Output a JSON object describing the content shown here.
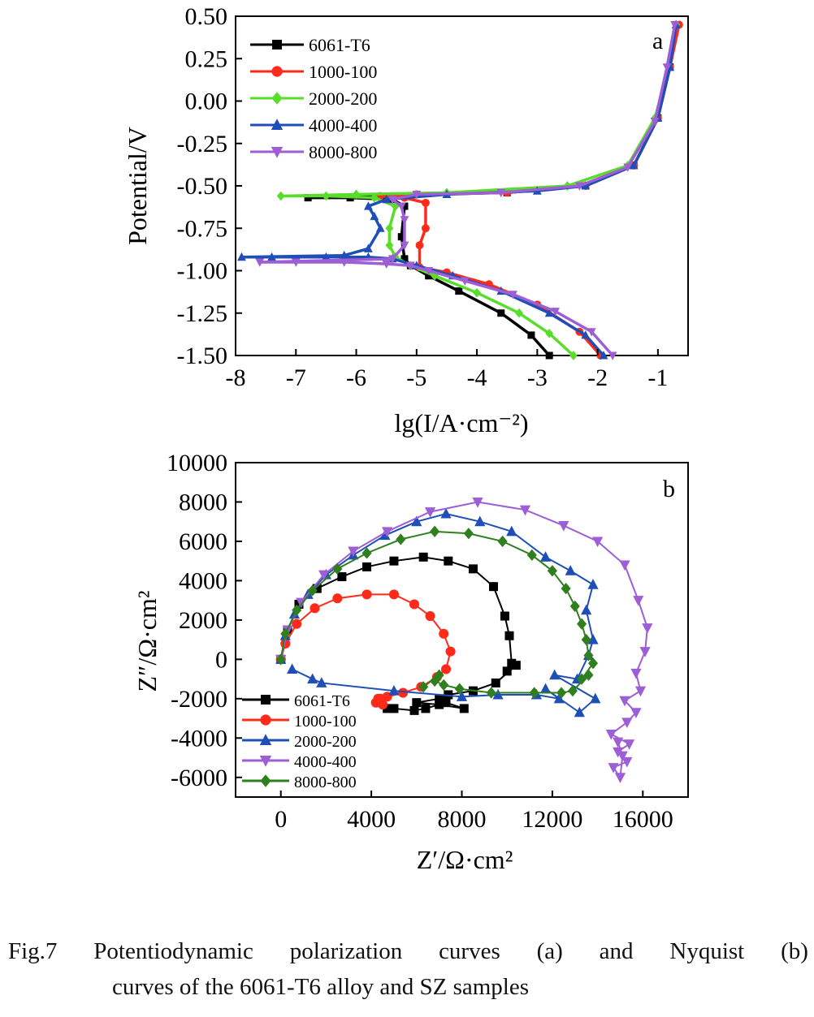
{
  "caption": {
    "label": "Fig.7",
    "line1_words": [
      "Potentiodynamic",
      "polarization",
      "curves",
      "(a)",
      "and",
      "Nyquist",
      "(b)"
    ],
    "line2": "curves of the 6061-T6 alloy and SZ samples"
  },
  "chart_data": [
    {
      "panel": "a",
      "type": "line",
      "xlabel": "lg(I/A·cm⁻²)",
      "ylabel": "Potential/V",
      "xlim": [
        -8,
        -0.5
      ],
      "ylim": [
        -1.5,
        0.5
      ],
      "xticks": [
        "-8",
        "-7",
        "-6",
        "-5",
        "-4",
        "-3",
        "-2",
        "-1"
      ],
      "yticks": [
        "0.50",
        "0.25",
        "0.00",
        "-0.25",
        "-0.50",
        "-0.75",
        "-1.00",
        "-1.25",
        "-1.50"
      ],
      "legend_position": "top-left",
      "series": [
        {
          "name": "6061-T6",
          "color": "#000000",
          "marker": "square",
          "points": [
            [
              -2.8,
              -1.5
            ],
            [
              -3.1,
              -1.38
            ],
            [
              -3.6,
              -1.25
            ],
            [
              -4.3,
              -1.12
            ],
            [
              -4.8,
              -1.03
            ],
            [
              -5.1,
              -0.97
            ],
            [
              -5.2,
              -0.93
            ],
            [
              -5.25,
              -0.8
            ],
            [
              -5.2,
              -0.62
            ],
            [
              -5.4,
              -0.58
            ],
            [
              -6.1,
              -0.57
            ],
            [
              -6.8,
              -0.57
            ],
            [
              -5.0,
              -0.55
            ],
            [
              -3.5,
              -0.54
            ],
            [
              -2.2,
              -0.5
            ],
            [
              -1.4,
              -0.38
            ],
            [
              -1.0,
              -0.1
            ],
            [
              -0.8,
              0.2
            ],
            [
              -0.68,
              0.45
            ]
          ]
        },
        {
          "name": "1000-100",
          "color": "#ff2a1a",
          "marker": "circle",
          "points": [
            [
              -1.95,
              -1.5
            ],
            [
              -2.3,
              -1.36
            ],
            [
              -3.0,
              -1.2
            ],
            [
              -3.8,
              -1.08
            ],
            [
              -4.5,
              -1.01
            ],
            [
              -4.95,
              -0.98
            ],
            [
              -4.95,
              -0.85
            ],
            [
              -4.85,
              -0.75
            ],
            [
              -4.85,
              -0.6
            ],
            [
              -5.2,
              -0.57
            ],
            [
              -5.6,
              -0.56
            ],
            [
              -5.0,
              -0.55
            ],
            [
              -3.5,
              -0.54
            ],
            [
              -2.2,
              -0.5
            ],
            [
              -1.4,
              -0.38
            ],
            [
              -1.0,
              -0.1
            ],
            [
              -0.8,
              0.2
            ],
            [
              -0.65,
              0.45
            ]
          ]
        },
        {
          "name": "2000-200",
          "color": "#5adc2a",
          "marker": "diamond",
          "points": [
            [
              -2.4,
              -1.5
            ],
            [
              -2.8,
              -1.37
            ],
            [
              -3.3,
              -1.25
            ],
            [
              -4.0,
              -1.13
            ],
            [
              -4.7,
              -1.03
            ],
            [
              -5.1,
              -0.97
            ],
            [
              -5.35,
              -0.92
            ],
            [
              -5.45,
              -0.85
            ],
            [
              -5.45,
              -0.75
            ],
            [
              -5.35,
              -0.62
            ],
            [
              -5.7,
              -0.57
            ],
            [
              -6.5,
              -0.56
            ],
            [
              -7.25,
              -0.56
            ],
            [
              -6.0,
              -0.55
            ],
            [
              -4.5,
              -0.54
            ],
            [
              -2.5,
              -0.5
            ],
            [
              -1.5,
              -0.38
            ],
            [
              -1.05,
              -0.1
            ],
            [
              -0.82,
              0.2
            ],
            [
              -0.7,
              0.45
            ]
          ]
        },
        {
          "name": "4000-400",
          "color": "#1f4fb6",
          "marker": "triangle-up",
          "points": [
            [
              -1.9,
              -1.5
            ],
            [
              -2.2,
              -1.38
            ],
            [
              -2.8,
              -1.25
            ],
            [
              -3.6,
              -1.12
            ],
            [
              -4.4,
              -1.03
            ],
            [
              -5.0,
              -0.97
            ],
            [
              -5.4,
              -0.93
            ],
            [
              -5.8,
              -0.92
            ],
            [
              -6.5,
              -0.92
            ],
            [
              -7.4,
              -0.92
            ],
            [
              -7.9,
              -0.92
            ],
            [
              -6.2,
              -0.91
            ],
            [
              -5.8,
              -0.87
            ],
            [
              -5.6,
              -0.75
            ],
            [
              -5.7,
              -0.68
            ],
            [
              -5.8,
              -0.62
            ],
            [
              -5.5,
              -0.58
            ],
            [
              -4.5,
              -0.55
            ],
            [
              -3.0,
              -0.53
            ],
            [
              -2.2,
              -0.5
            ],
            [
              -1.4,
              -0.38
            ],
            [
              -1.0,
              -0.1
            ],
            [
              -0.8,
              0.2
            ],
            [
              -0.7,
              0.45
            ]
          ]
        },
        {
          "name": "8000-800",
          "color": "#9d5ed6",
          "marker": "triangle-down",
          "points": [
            [
              -1.75,
              -1.5
            ],
            [
              -2.1,
              -1.36
            ],
            [
              -2.7,
              -1.24
            ],
            [
              -3.4,
              -1.14
            ],
            [
              -4.2,
              -1.06
            ],
            [
              -4.8,
              -1.0
            ],
            [
              -5.1,
              -0.97
            ],
            [
              -5.5,
              -0.96
            ],
            [
              -6.2,
              -0.95
            ],
            [
              -7.0,
              -0.95
            ],
            [
              -7.6,
              -0.95
            ],
            [
              -5.4,
              -0.93
            ],
            [
              -5.2,
              -0.85
            ],
            [
              -5.2,
              -0.7
            ],
            [
              -5.25,
              -0.62
            ],
            [
              -5.4,
              -0.58
            ],
            [
              -5.0,
              -0.55
            ],
            [
              -3.6,
              -0.54
            ],
            [
              -2.3,
              -0.5
            ],
            [
              -1.5,
              -0.39
            ],
            [
              -1.05,
              -0.12
            ],
            [
              -0.85,
              0.2
            ],
            [
              -0.72,
              0.45
            ]
          ]
        }
      ],
      "annotations": [
        "a"
      ]
    },
    {
      "panel": "b",
      "type": "line",
      "xlabel": "Z′/Ω·cm²",
      "ylabel": "Z″/Ω·cm²",
      "xlim": [
        -2000,
        18000
      ],
      "ylim": [
        -7000,
        10000
      ],
      "xticks": [
        "0",
        "4000",
        "8000",
        "12000",
        "16000"
      ],
      "yticks": [
        "10000",
        "8000",
        "6000",
        "4000",
        "2000",
        "0",
        "-2000",
        "-4000",
        "-6000"
      ],
      "legend_position": "bottom-left",
      "series": [
        {
          "name": "6061-T6",
          "color": "#000000",
          "marker": "square",
          "points": [
            [
              0,
              0
            ],
            [
              300,
              1500
            ],
            [
              800,
              2800
            ],
            [
              1600,
              3600
            ],
            [
              2700,
              4200
            ],
            [
              3800,
              4700
            ],
            [
              5000,
              5000
            ],
            [
              6300,
              5200
            ],
            [
              7400,
              5000
            ],
            [
              8500,
              4600
            ],
            [
              9400,
              3700
            ],
            [
              9900,
              2200
            ],
            [
              10100,
              1200
            ],
            [
              10200,
              -200
            ],
            [
              10000,
              -600
            ],
            [
              10400,
              -300
            ],
            [
              9500,
              -1200
            ],
            [
              8500,
              -1600
            ],
            [
              7400,
              -1800
            ],
            [
              7000,
              -2000
            ],
            [
              6000,
              -2200
            ],
            [
              7000,
              -2300
            ],
            [
              8100,
              -2500
            ],
            [
              7300,
              -2200
            ],
            [
              6400,
              -2500
            ],
            [
              5900,
              -2600
            ],
            [
              5000,
              -2500
            ],
            [
              4700,
              -2500
            ]
          ]
        },
        {
          "name": "1000-100",
          "color": "#ff2a1a",
          "marker": "circle",
          "points": [
            [
              0,
              0
            ],
            [
              200,
              800
            ],
            [
              700,
              1800
            ],
            [
              1500,
              2600
            ],
            [
              2500,
              3100
            ],
            [
              3800,
              3300
            ],
            [
              5000,
              3300
            ],
            [
              5900,
              2800
            ],
            [
              6600,
              2200
            ],
            [
              7200,
              1300
            ],
            [
              7500,
              400
            ],
            [
              7300,
              -500
            ],
            [
              6900,
              -900
            ],
            [
              6200,
              -1400
            ],
            [
              5400,
              -1700
            ],
            [
              4700,
              -1900
            ],
            [
              4300,
              -2000
            ],
            [
              4200,
              -2200
            ],
            [
              4500,
              -2300
            ],
            [
              4400,
              -2000
            ]
          ]
        },
        {
          "name": "2000-200",
          "color": "#1f4fb6",
          "marker": "triangle-up",
          "points": [
            [
              0,
              0
            ],
            [
              200,
              1200
            ],
            [
              600,
              2300
            ],
            [
              1200,
              3300
            ],
            [
              2000,
              4300
            ],
            [
              3200,
              5300
            ],
            [
              4600,
              6300
            ],
            [
              6000,
              7000
            ],
            [
              7300,
              7400
            ],
            [
              8800,
              7000
            ],
            [
              10200,
              6500
            ],
            [
              11700,
              5200
            ],
            [
              12800,
              4500
            ],
            [
              13800,
              3800
            ],
            [
              13500,
              2500
            ],
            [
              13800,
              1000
            ],
            [
              13600,
              200
            ],
            [
              13100,
              -1000
            ],
            [
              12100,
              -800
            ],
            [
              13900,
              -2000
            ],
            [
              13200,
              -2700
            ],
            [
              11700,
              -1500
            ],
            [
              12300,
              -2000
            ],
            [
              11300,
              -1800
            ],
            [
              9600,
              -1800
            ],
            [
              8000,
              -1900
            ],
            [
              5000,
              -1600
            ],
            [
              1800,
              -1200
            ],
            [
              1400,
              -1000
            ],
            [
              500,
              -500
            ]
          ]
        },
        {
          "name": "4000-400",
          "color": "#9d5ed6",
          "marker": "triangle-down",
          "points": [
            [
              0,
              0
            ],
            [
              300,
              1500
            ],
            [
              900,
              2900
            ],
            [
              1900,
              4300
            ],
            [
              3200,
              5500
            ],
            [
              4700,
              6500
            ],
            [
              6600,
              7500
            ],
            [
              8700,
              8000
            ],
            [
              10800,
              7600
            ],
            [
              12500,
              6800
            ],
            [
              14000,
              6000
            ],
            [
              15200,
              4800
            ],
            [
              15800,
              3000
            ],
            [
              16200,
              1600
            ],
            [
              16100,
              400
            ],
            [
              15700,
              -700
            ],
            [
              15900,
              -1600
            ],
            [
              15200,
              -2100
            ],
            [
              15700,
              -2700
            ],
            [
              15300,
              -3200
            ],
            [
              14600,
              -3800
            ],
            [
              15400,
              -4300
            ],
            [
              14900,
              -4700
            ],
            [
              15300,
              -5200
            ],
            [
              14700,
              -5500
            ],
            [
              15000,
              -6000
            ],
            [
              15100,
              -4900
            ],
            [
              14900,
              -4200
            ]
          ]
        },
        {
          "name": "8000-800",
          "color": "#2f7f1e",
          "marker": "diamond",
          "points": [
            [
              0,
              0
            ],
            [
              200,
              1300
            ],
            [
              700,
              2500
            ],
            [
              1400,
              3500
            ],
            [
              2500,
              4600
            ],
            [
              3800,
              5400
            ],
            [
              5300,
              6100
            ],
            [
              6800,
              6500
            ],
            [
              8300,
              6400
            ],
            [
              9800,
              6000
            ],
            [
              11100,
              5300
            ],
            [
              12000,
              4500
            ],
            [
              12600,
              3600
            ],
            [
              13000,
              2700
            ],
            [
              13300,
              1800
            ],
            [
              13500,
              1000
            ],
            [
              13600,
              200
            ],
            [
              13800,
              -200
            ],
            [
              13300,
              -1000
            ],
            [
              13600,
              -800
            ],
            [
              12900,
              -1600
            ],
            [
              12400,
              -1700
            ],
            [
              11200,
              -1700
            ],
            [
              9300,
              -1700
            ],
            [
              7900,
              -1500
            ],
            [
              7200,
              -1300
            ],
            [
              6800,
              -1100
            ],
            [
              7000,
              -800
            ],
            [
              6300,
              -1400
            ]
          ]
        }
      ],
      "annotations": [
        "b"
      ]
    }
  ]
}
